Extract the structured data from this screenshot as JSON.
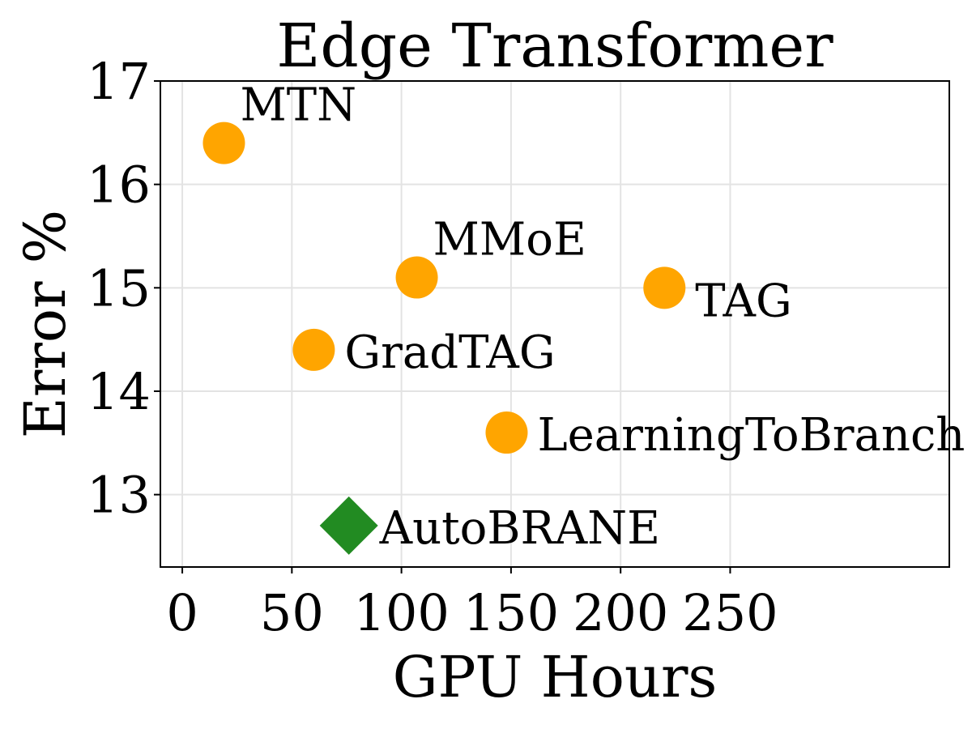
{
  "chart_data": {
    "type": "scatter",
    "title": "Edge Transformer",
    "xlabel": "GPU Hours",
    "ylabel": "Error %",
    "xlim": [
      -10,
      350
    ],
    "ylim": [
      12.3,
      17
    ],
    "xticks": [
      0,
      50,
      100,
      150,
      200,
      250
    ],
    "yticks": [
      13,
      14,
      15,
      16,
      17
    ],
    "grid": true,
    "points": [
      {
        "label": "MTN",
        "x": 19,
        "y": 16.4,
        "marker": "circle",
        "color": "#FFA500",
        "label_pos": "above-right"
      },
      {
        "label": "MMoE",
        "x": 107,
        "y": 15.1,
        "marker": "circle",
        "color": "#FFA500",
        "label_pos": "above-right"
      },
      {
        "label": "TAG",
        "x": 220,
        "y": 15.0,
        "marker": "circle",
        "color": "#FFA500",
        "label_pos": "right-below"
      },
      {
        "label": "GradTAG",
        "x": 60,
        "y": 14.4,
        "marker": "circle",
        "color": "#FFA500",
        "label_pos": "right"
      },
      {
        "label": "LearningToBranch",
        "x": 148,
        "y": 13.6,
        "marker": "circle",
        "color": "#FFA500",
        "label_pos": "right"
      },
      {
        "label": "AutoBRANE",
        "x": 76,
        "y": 12.7,
        "marker": "diamond",
        "color": "#228B22",
        "label_pos": "right"
      }
    ]
  }
}
